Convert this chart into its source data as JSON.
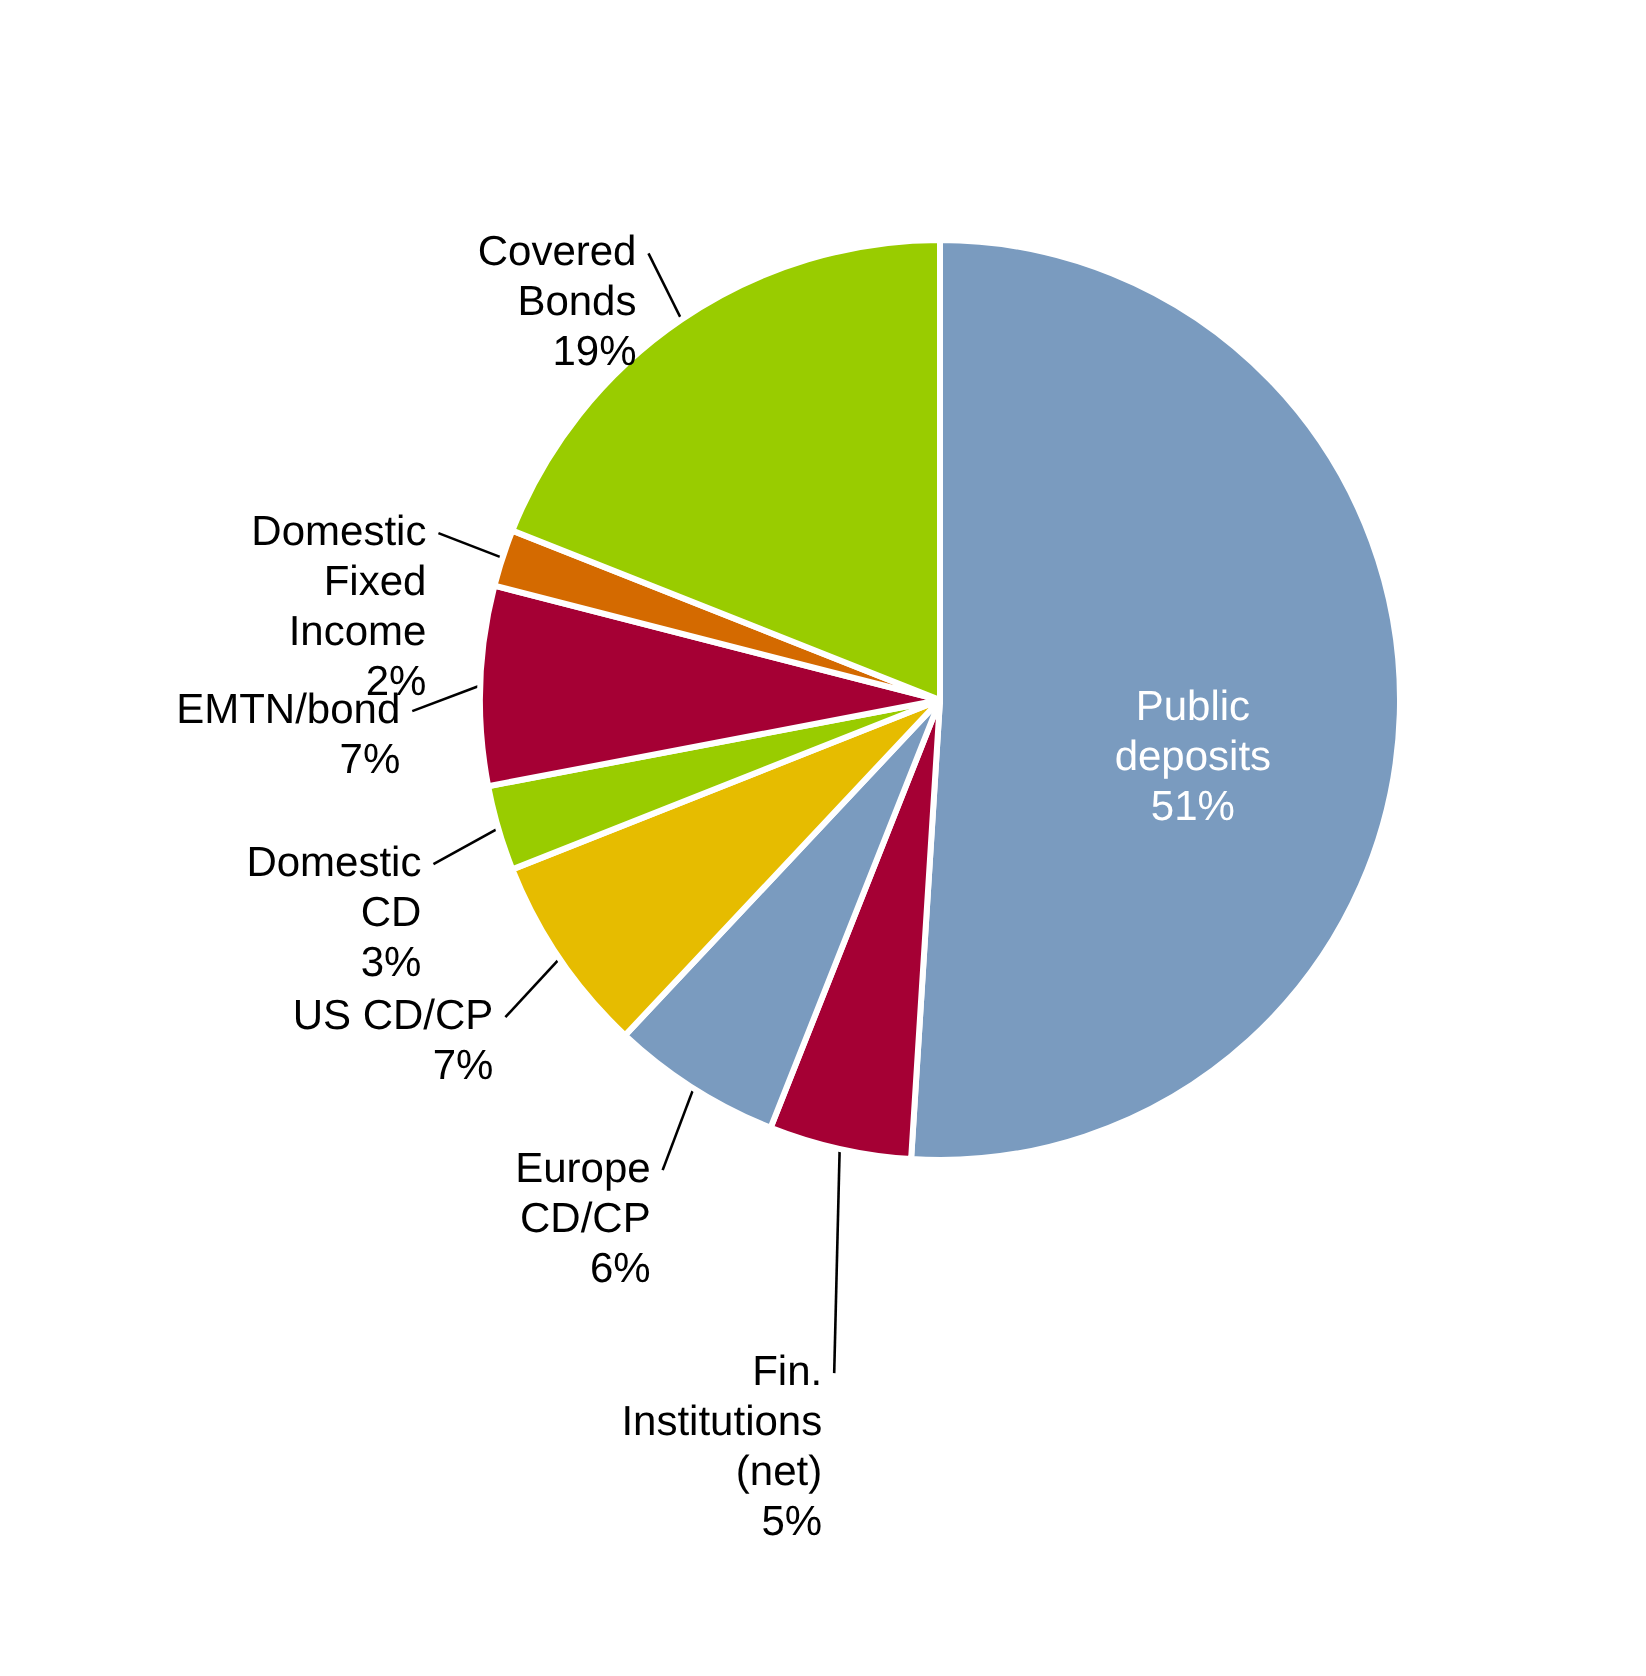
{
  "chart_data": {
    "type": "pie",
    "categories": [
      "Public\ndeposits",
      "Fin.\nInstitutions\n(net)",
      "Europe\nCD/CP",
      "US CD/CP",
      "Domestic\nCD",
      "EMTN/bond",
      "Domestic\nFixed\nIncome",
      "Covered\nBonds"
    ],
    "values": [
      51,
      5,
      6,
      7,
      3,
      7,
      2,
      19
    ],
    "value_labels": [
      "51%",
      "5%",
      "6%",
      "7%",
      "3%",
      "7%",
      "2%",
      "19%"
    ],
    "colors": [
      "#7a9bbf",
      "#a50034",
      "#7a9bbf",
      "#e6bc00",
      "#99cc00",
      "#a50034",
      "#d46a00",
      "#99cc00"
    ]
  }
}
